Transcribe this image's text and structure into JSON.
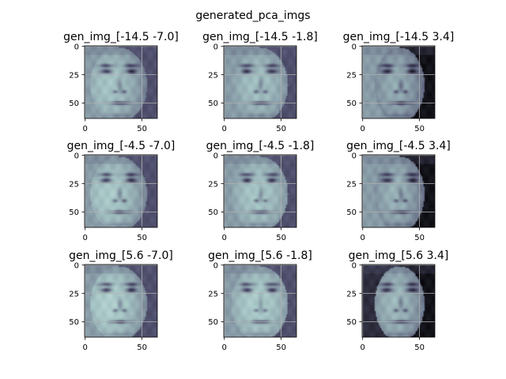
{
  "figure": {
    "suptitle": "generated_pca_imgs"
  },
  "colors": {
    "colormap": "bone",
    "grid": "#b0b0b0",
    "axis": "#000000",
    "background": "#ffffff"
  },
  "chart_data": [
    {
      "type": "heatmap",
      "title": "gen_img_[-14.5 -7.0]",
      "xlim": [
        -0.5,
        63.5
      ],
      "ylim": [
        63.5,
        -0.5
      ],
      "xticks": [
        "0",
        "50"
      ],
      "yticks": [
        "0",
        "25",
        "50"
      ],
      "grid": true,
      "colormap": "bone",
      "variant": 0
    },
    {
      "type": "heatmap",
      "title": "gen_img_[-14.5 -1.8]",
      "xlim": [
        -0.5,
        63.5
      ],
      "ylim": [
        63.5,
        -0.5
      ],
      "xticks": [
        "0",
        "50"
      ],
      "yticks": [
        "0",
        "25",
        "50"
      ],
      "grid": true,
      "colormap": "bone",
      "variant": 1
    },
    {
      "type": "heatmap",
      "title": "gen_img_[-14.5 3.4]",
      "xlim": [
        -0.5,
        63.5
      ],
      "ylim": [
        63.5,
        -0.5
      ],
      "xticks": [
        "0",
        "50"
      ],
      "yticks": [
        "0",
        "25",
        "50"
      ],
      "grid": true,
      "colormap": "bone",
      "variant": 2
    },
    {
      "type": "heatmap",
      "title": "gen_img_[-4.5 -7.0]",
      "xlim": [
        -0.5,
        63.5
      ],
      "ylim": [
        63.5,
        -0.5
      ],
      "xticks": [
        "0",
        "50"
      ],
      "yticks": [
        "0",
        "25",
        "50"
      ],
      "grid": true,
      "colormap": "bone",
      "variant": 3
    },
    {
      "type": "heatmap",
      "title": "gen_img_[-4.5 -1.8]",
      "xlim": [
        -0.5,
        63.5
      ],
      "ylim": [
        63.5,
        -0.5
      ],
      "xticks": [
        "0",
        "50"
      ],
      "yticks": [
        "0",
        "25",
        "50"
      ],
      "grid": true,
      "colormap": "bone",
      "variant": 4
    },
    {
      "type": "heatmap",
      "title": "gen_img_[-4.5 3.4]",
      "xlim": [
        -0.5,
        63.5
      ],
      "ylim": [
        63.5,
        -0.5
      ],
      "xticks": [
        "0",
        "50"
      ],
      "yticks": [
        "0",
        "25",
        "50"
      ],
      "grid": true,
      "colormap": "bone",
      "variant": 5
    },
    {
      "type": "heatmap",
      "title": "gen_img_[5.6 -7.0]",
      "xlim": [
        -0.5,
        63.5
      ],
      "ylim": [
        63.5,
        -0.5
      ],
      "xticks": [
        "0",
        "50"
      ],
      "yticks": [
        "0",
        "25",
        "50"
      ],
      "grid": true,
      "colormap": "bone",
      "variant": 6
    },
    {
      "type": "heatmap",
      "title": "gen_img_[5.6 -1.8]",
      "xlim": [
        -0.5,
        63.5
      ],
      "ylim": [
        63.5,
        -0.5
      ],
      "xticks": [
        "0",
        "50"
      ],
      "yticks": [
        "0",
        "25",
        "50"
      ],
      "grid": true,
      "colormap": "bone",
      "variant": 7
    },
    {
      "type": "heatmap",
      "title": "gen_img_[5.6 3.4]",
      "xlim": [
        -0.5,
        63.5
      ],
      "ylim": [
        63.5,
        -0.5
      ],
      "xticks": [
        "0",
        "50"
      ],
      "yticks": [
        "0",
        "25",
        "50"
      ],
      "grid": true,
      "colormap": "bone",
      "variant": 8
    }
  ]
}
